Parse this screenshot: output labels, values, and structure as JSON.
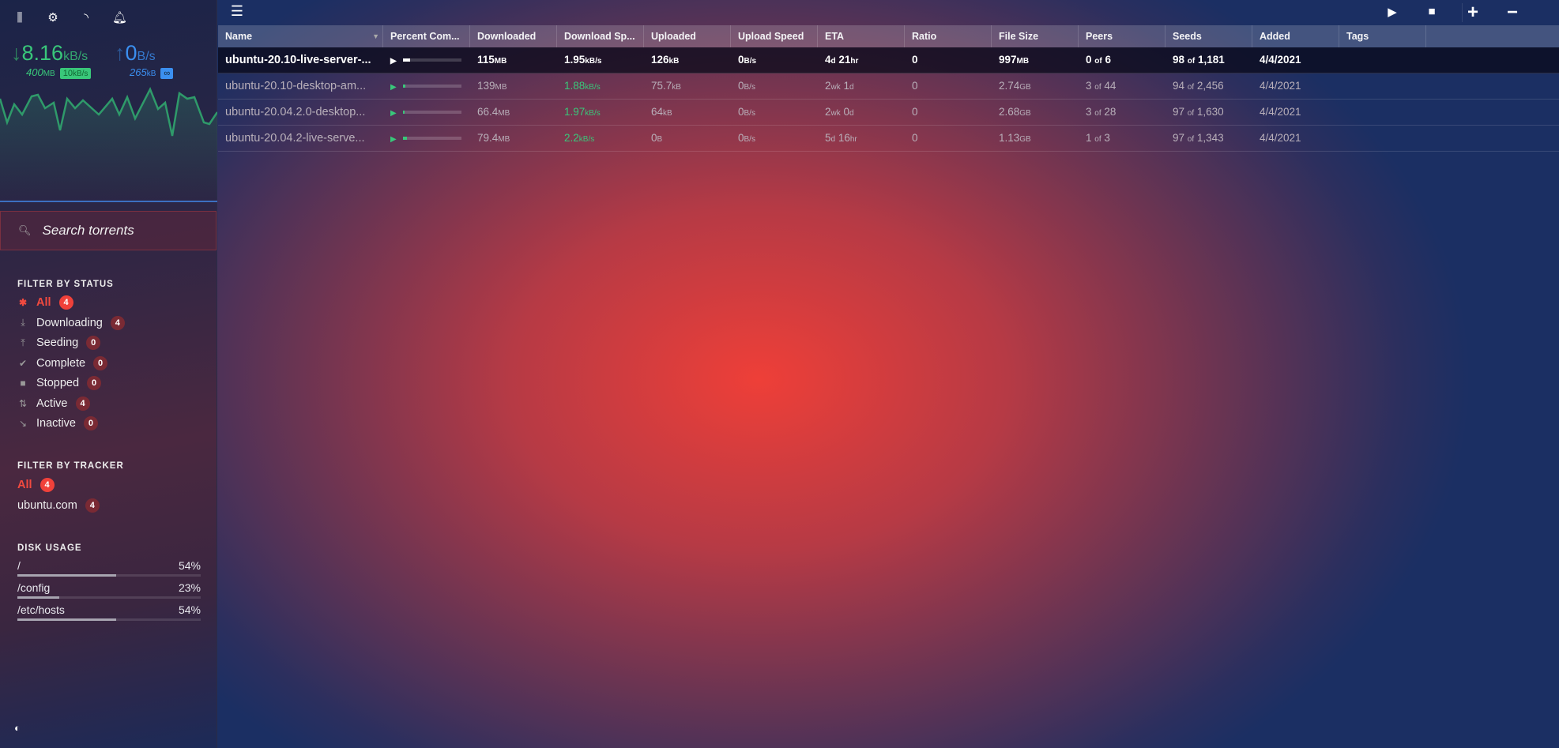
{
  "sidebar": {
    "icons": [
      "mixer-icon",
      "gear-icon",
      "rss-icon",
      "bell-icon"
    ],
    "download": {
      "speed": "8.16",
      "unit": "kB/s",
      "total": "400",
      "total_unit": "MB",
      "limit": "10",
      "limit_unit": "kB/s",
      "color": "#39c77a"
    },
    "upload": {
      "speed": "0",
      "unit": "B/s",
      "total": "265",
      "total_unit": "kB",
      "limit": "∞",
      "color": "#3b8ff0"
    },
    "search_placeholder": "Search torrents",
    "status_header": "FILTER BY STATUS",
    "status": [
      {
        "label": "All",
        "count": "4",
        "icon": "asterisk-icon",
        "active": true
      },
      {
        "label": "Downloading",
        "count": "4",
        "icon": "download-icon"
      },
      {
        "label": "Seeding",
        "count": "0",
        "icon": "upload-icon"
      },
      {
        "label": "Complete",
        "count": "0",
        "icon": "check-icon"
      },
      {
        "label": "Stopped",
        "count": "0",
        "icon": "stop-icon"
      },
      {
        "label": "Active",
        "count": "4",
        "icon": "arrows-icon"
      },
      {
        "label": "Inactive",
        "count": "0",
        "icon": "inactive-icon"
      }
    ],
    "tracker_header": "FILTER BY TRACKER",
    "trackers": [
      {
        "label": "All",
        "count": "4",
        "active": true
      },
      {
        "label": "ubuntu.com",
        "count": "4"
      }
    ],
    "disk_header": "DISK USAGE",
    "disks": [
      {
        "path": "/",
        "pct": "54%",
        "value": 54
      },
      {
        "path": "/config",
        "pct": "23%",
        "value": 23
      },
      {
        "path": "/etc/hosts",
        "pct": "54%",
        "value": 54
      }
    ]
  },
  "table": {
    "columns": [
      "Name",
      "Percent Com...",
      "Downloaded",
      "Download Sp...",
      "Uploaded",
      "Upload Speed",
      "ETA",
      "Ratio",
      "File Size",
      "Peers",
      "Seeds",
      "Added",
      "Tags",
      ""
    ],
    "rows": [
      {
        "name": "ubuntu-20.10-live-server-...",
        "progress": 12,
        "downloaded": "115",
        "downloaded_unit": "MB",
        "dl_speed": "1.95",
        "dl_speed_unit": "kB/s",
        "uploaded": "126",
        "uploaded_unit": "kB",
        "ul_speed": "0",
        "ul_speed_unit": "B/s",
        "eta_a": "4",
        "eta_au": "d",
        "eta_b": "21",
        "eta_bu": "hr",
        "ratio": "0",
        "size": "997",
        "size_unit": "MB",
        "peers_a": "0",
        "peers_b": "6",
        "seeds_a": "98",
        "seeds_b": "1,181",
        "added": "4/4/2021",
        "tags": "",
        "selected": true
      },
      {
        "name": "ubuntu-20.10-desktop-am...",
        "progress": 5,
        "downloaded": "139",
        "downloaded_unit": "MB",
        "dl_speed": "1.88",
        "dl_speed_unit": "kB/s",
        "uploaded": "75.7",
        "uploaded_unit": "kB",
        "ul_speed": "0",
        "ul_speed_unit": "B/s",
        "eta_a": "2",
        "eta_au": "wk",
        "eta_b": "1",
        "eta_bu": "d",
        "ratio": "0",
        "size": "2.74",
        "size_unit": "GB",
        "peers_a": "3",
        "peers_b": "44",
        "seeds_a": "94",
        "seeds_b": "2,456",
        "added": "4/4/2021",
        "tags": ""
      },
      {
        "name": "ubuntu-20.04.2.0-desktop...",
        "progress": 3,
        "downloaded": "66.4",
        "downloaded_unit": "MB",
        "dl_speed": "1.97",
        "dl_speed_unit": "kB/s",
        "uploaded": "64",
        "uploaded_unit": "kB",
        "ul_speed": "0",
        "ul_speed_unit": "B/s",
        "eta_a": "2",
        "eta_au": "wk",
        "eta_b": "0",
        "eta_bu": "d",
        "ratio": "0",
        "size": "2.68",
        "size_unit": "GB",
        "peers_a": "3",
        "peers_b": "28",
        "seeds_a": "97",
        "seeds_b": "1,630",
        "added": "4/4/2021",
        "tags": ""
      },
      {
        "name": "ubuntu-20.04.2-live-serve...",
        "progress": 7,
        "downloaded": "79.4",
        "downloaded_unit": "MB",
        "dl_speed": "2.2",
        "dl_speed_unit": "kB/s",
        "uploaded": "0",
        "uploaded_unit": "B",
        "ul_speed": "0",
        "ul_speed_unit": "B/s",
        "eta_a": "5",
        "eta_au": "d",
        "eta_b": "16",
        "eta_bu": "hr",
        "ratio": "0",
        "size": "1.13",
        "size_unit": "GB",
        "peers_a": "1",
        "peers_b": "3",
        "seeds_a": "97",
        "seeds_b": "1,343",
        "added": "4/4/2021",
        "tags": ""
      }
    ],
    "of_label": "of"
  },
  "toolbar": {
    "icons": [
      "menu-icon",
      "start-icon",
      "stop-icon",
      "add-icon",
      "remove-icon"
    ]
  }
}
